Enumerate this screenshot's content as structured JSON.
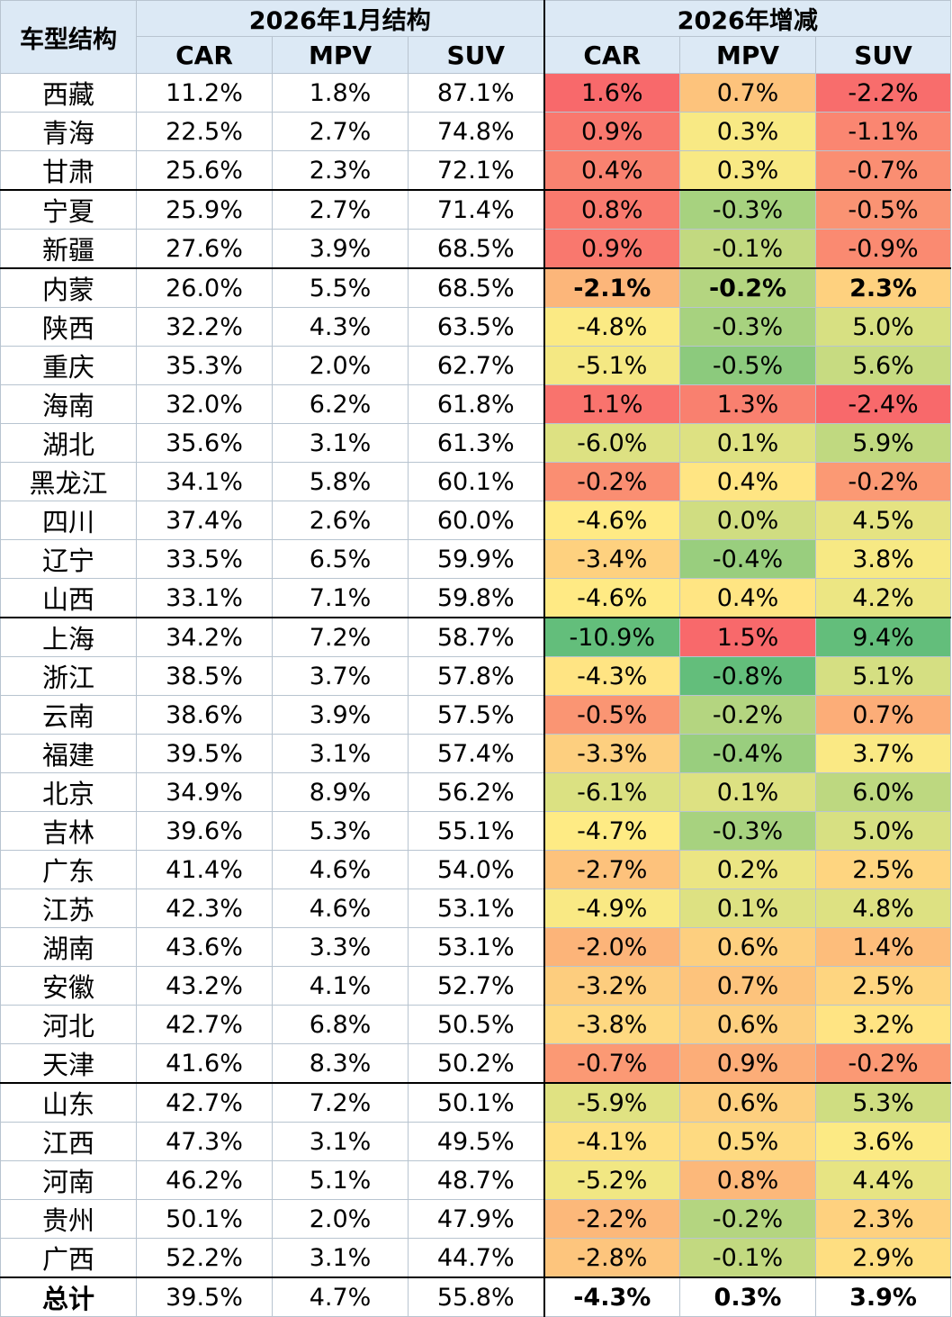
{
  "header": {
    "corner": "车型结构",
    "group_structure": "2026年1月结构",
    "group_change": "2026年增减",
    "cols": [
      "CAR",
      "MPV",
      "SUV",
      "CAR",
      "MPV",
      "SUV"
    ]
  },
  "colors": {
    "header_bg": "#dce9f5",
    "scale_red": "#f8696b",
    "scale_yellow": "#ffeb84",
    "scale_green": "#63be7b"
  },
  "rows": [
    {
      "region": "西藏",
      "car": "11.2%",
      "mpv": "1.8%",
      "suv": "87.1%",
      "d_car": "1.6%",
      "d_mpv": "0.7%",
      "d_suv": "-2.2%"
    },
    {
      "region": "青海",
      "car": "22.5%",
      "mpv": "2.7%",
      "suv": "74.8%",
      "d_car": "0.9%",
      "d_mpv": "0.3%",
      "d_suv": "-1.1%"
    },
    {
      "region": "甘肃",
      "car": "25.6%",
      "mpv": "2.3%",
      "suv": "72.1%",
      "d_car": "0.4%",
      "d_mpv": "0.3%",
      "d_suv": "-0.7%"
    },
    {
      "region": "宁夏",
      "car": "25.9%",
      "mpv": "2.7%",
      "suv": "71.4%",
      "d_car": "0.8%",
      "d_mpv": "-0.3%",
      "d_suv": "-0.5%"
    },
    {
      "region": "新疆",
      "car": "27.6%",
      "mpv": "3.9%",
      "suv": "68.5%",
      "d_car": "0.9%",
      "d_mpv": "-0.1%",
      "d_suv": "-0.9%"
    },
    {
      "region": "内蒙",
      "car": "26.0%",
      "mpv": "5.5%",
      "suv": "68.5%",
      "d_car": "-2.1%",
      "d_mpv": "-0.2%",
      "d_suv": "2.3%"
    },
    {
      "region": "陕西",
      "car": "32.2%",
      "mpv": "4.3%",
      "suv": "63.5%",
      "d_car": "-4.8%",
      "d_mpv": "-0.3%",
      "d_suv": "5.0%"
    },
    {
      "region": "重庆",
      "car": "35.3%",
      "mpv": "2.0%",
      "suv": "62.7%",
      "d_car": "-5.1%",
      "d_mpv": "-0.5%",
      "d_suv": "5.6%"
    },
    {
      "region": "海南",
      "car": "32.0%",
      "mpv": "6.2%",
      "suv": "61.8%",
      "d_car": "1.1%",
      "d_mpv": "1.3%",
      "d_suv": "-2.4%"
    },
    {
      "region": "湖北",
      "car": "35.6%",
      "mpv": "3.1%",
      "suv": "61.3%",
      "d_car": "-6.0%",
      "d_mpv": "0.1%",
      "d_suv": "5.9%"
    },
    {
      "region": "黑龙江",
      "car": "34.1%",
      "mpv": "5.8%",
      "suv": "60.1%",
      "d_car": "-0.2%",
      "d_mpv": "0.4%",
      "d_suv": "-0.2%"
    },
    {
      "region": "四川",
      "car": "37.4%",
      "mpv": "2.6%",
      "suv": "60.0%",
      "d_car": "-4.6%",
      "d_mpv": "0.0%",
      "d_suv": "4.5%"
    },
    {
      "region": "辽宁",
      "car": "33.5%",
      "mpv": "6.5%",
      "suv": "59.9%",
      "d_car": "-3.4%",
      "d_mpv": "-0.4%",
      "d_suv": "3.8%"
    },
    {
      "region": "山西",
      "car": "33.1%",
      "mpv": "7.1%",
      "suv": "59.8%",
      "d_car": "-4.6%",
      "d_mpv": "0.4%",
      "d_suv": "4.2%"
    },
    {
      "region": "上海",
      "car": "34.2%",
      "mpv": "7.2%",
      "suv": "58.7%",
      "d_car": "-10.9%",
      "d_mpv": "1.5%",
      "d_suv": "9.4%"
    },
    {
      "region": "浙江",
      "car": "38.5%",
      "mpv": "3.7%",
      "suv": "57.8%",
      "d_car": "-4.3%",
      "d_mpv": "-0.8%",
      "d_suv": "5.1%"
    },
    {
      "region": "云南",
      "car": "38.6%",
      "mpv": "3.9%",
      "suv": "57.5%",
      "d_car": "-0.5%",
      "d_mpv": "-0.2%",
      "d_suv": "0.7%"
    },
    {
      "region": "福建",
      "car": "39.5%",
      "mpv": "3.1%",
      "suv": "57.4%",
      "d_car": "-3.3%",
      "d_mpv": "-0.4%",
      "d_suv": "3.7%"
    },
    {
      "region": "北京",
      "car": "34.9%",
      "mpv": "8.9%",
      "suv": "56.2%",
      "d_car": "-6.1%",
      "d_mpv": "0.1%",
      "d_suv": "6.0%"
    },
    {
      "region": "吉林",
      "car": "39.6%",
      "mpv": "5.3%",
      "suv": "55.1%",
      "d_car": "-4.7%",
      "d_mpv": "-0.3%",
      "d_suv": "5.0%"
    },
    {
      "region": "广东",
      "car": "41.4%",
      "mpv": "4.6%",
      "suv": "54.0%",
      "d_car": "-2.7%",
      "d_mpv": "0.2%",
      "d_suv": "2.5%"
    },
    {
      "region": "江苏",
      "car": "42.3%",
      "mpv": "4.6%",
      "suv": "53.1%",
      "d_car": "-4.9%",
      "d_mpv": "0.1%",
      "d_suv": "4.8%"
    },
    {
      "region": "湖南",
      "car": "43.6%",
      "mpv": "3.3%",
      "suv": "53.1%",
      "d_car": "-2.0%",
      "d_mpv": "0.6%",
      "d_suv": "1.4%"
    },
    {
      "region": "安徽",
      "car": "43.2%",
      "mpv": "4.1%",
      "suv": "52.7%",
      "d_car": "-3.2%",
      "d_mpv": "0.7%",
      "d_suv": "2.5%"
    },
    {
      "region": "河北",
      "car": "42.7%",
      "mpv": "6.8%",
      "suv": "50.5%",
      "d_car": "-3.8%",
      "d_mpv": "0.6%",
      "d_suv": "3.2%"
    },
    {
      "region": "天津",
      "car": "41.6%",
      "mpv": "8.3%",
      "suv": "50.2%",
      "d_car": "-0.7%",
      "d_mpv": "0.9%",
      "d_suv": "-0.2%"
    },
    {
      "region": "山东",
      "car": "42.7%",
      "mpv": "7.2%",
      "suv": "50.1%",
      "d_car": "-5.9%",
      "d_mpv": "0.6%",
      "d_suv": "5.3%"
    },
    {
      "region": "江西",
      "car": "47.3%",
      "mpv": "3.1%",
      "suv": "49.5%",
      "d_car": "-4.1%",
      "d_mpv": "0.5%",
      "d_suv": "3.6%"
    },
    {
      "region": "河南",
      "car": "46.2%",
      "mpv": "5.1%",
      "suv": "48.7%",
      "d_car": "-5.2%",
      "d_mpv": "0.8%",
      "d_suv": "4.4%"
    },
    {
      "region": "贵州",
      "car": "50.1%",
      "mpv": "2.0%",
      "suv": "47.9%",
      "d_car": "-2.2%",
      "d_mpv": "-0.2%",
      "d_suv": "2.3%"
    },
    {
      "region": "广西",
      "car": "52.2%",
      "mpv": "3.1%",
      "suv": "44.7%",
      "d_car": "-2.8%",
      "d_mpv": "-0.1%",
      "d_suv": "2.9%"
    }
  ],
  "total": {
    "region": "总计",
    "car": "39.5%",
    "mpv": "4.7%",
    "suv": "55.8%",
    "d_car": "-4.3%",
    "d_mpv": "0.3%",
    "d_suv": "3.9%"
  }
}
